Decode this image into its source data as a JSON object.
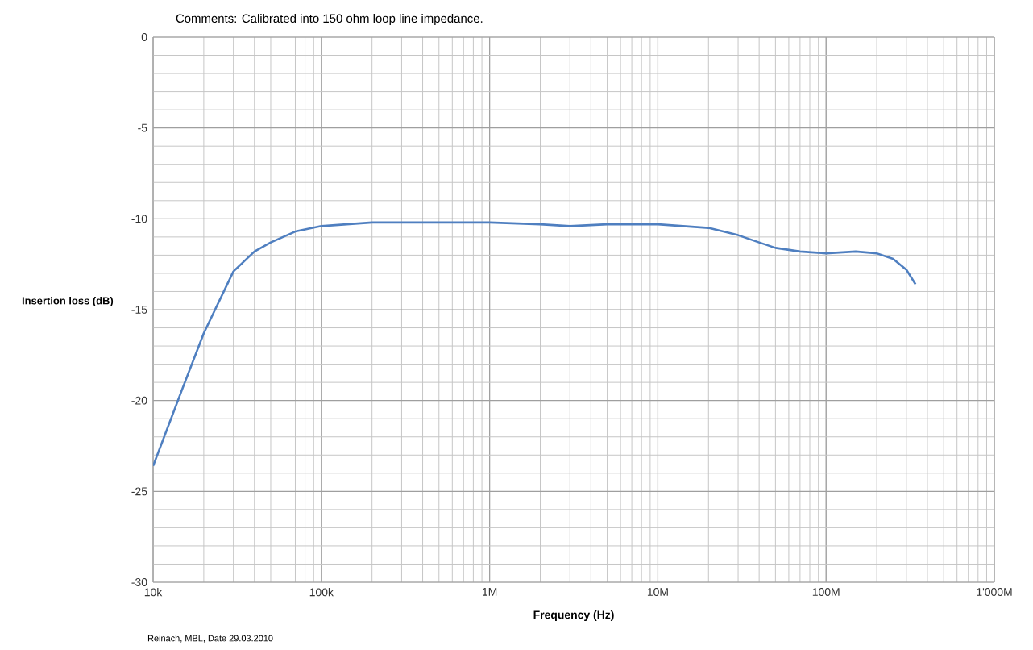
{
  "chart_data": {
    "type": "line",
    "title": "Comments: Calibrated into 150 ohm loop line impedance.",
    "xlabel": "Frequency (Hz)",
    "ylabel": "Insertion loss (dB)",
    "annotations": [
      "Reinach, MBL, Date 29.03.2010"
    ],
    "log": "x",
    "grid": true,
    "marker": "none",
    "line_style": "solid",
    "xlim": [
      10000,
      1000000000
    ],
    "ylim": [
      -30,
      0
    ],
    "xticks": [
      {
        "value": 10000,
        "label": "10k"
      },
      {
        "value": 100000,
        "label": "100k"
      },
      {
        "value": 1000000,
        "label": "1M"
      },
      {
        "value": 10000000,
        "label": "10M"
      },
      {
        "value": 100000000,
        "label": "100M"
      },
      {
        "value": 1000000000,
        "label": "1'000M"
      }
    ],
    "yticks": [
      -30,
      -25,
      -20,
      -15,
      -10,
      -5,
      0
    ],
    "series": [
      {
        "color": "#4f7fc0",
        "x": [
          10000,
          15000,
          20000,
          30000,
          40000,
          50000,
          70000,
          100000,
          200000,
          500000,
          1000000,
          2000000,
          3000000,
          5000000,
          10000000,
          20000000,
          30000000,
          40000000,
          50000000,
          70000000,
          100000000,
          150000000,
          200000000,
          250000000,
          300000000,
          340000000
        ],
        "values": [
          -23.6,
          -19.3,
          -16.3,
          -12.9,
          -11.8,
          -11.3,
          -10.7,
          -10.4,
          -10.2,
          -10.2,
          -10.2,
          -10.3,
          -10.4,
          -10.3,
          -10.3,
          -10.5,
          -10.9,
          -11.3,
          -11.6,
          -11.8,
          -11.9,
          -11.8,
          -11.9,
          -12.2,
          -12.8,
          -13.6
        ]
      }
    ]
  }
}
